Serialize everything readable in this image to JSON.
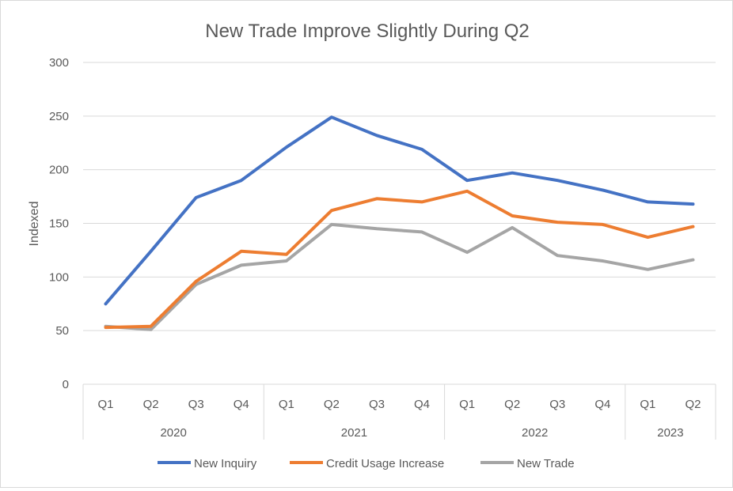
{
  "chart_data": {
    "type": "line",
    "title": "New Trade Improve Slightly During Q2",
    "xlabel": "",
    "ylabel": "Indexed",
    "ylim": [
      0,
      300
    ],
    "yticks": [
      0,
      50,
      100,
      150,
      200,
      250,
      300
    ],
    "grid": true,
    "legend_position": "bottom",
    "categories": [
      "Q1",
      "Q2",
      "Q3",
      "Q4",
      "Q1",
      "Q2",
      "Q3",
      "Q4",
      "Q1",
      "Q2",
      "Q3",
      "Q4",
      "Q1",
      "Q2"
    ],
    "groups": [
      {
        "label": "2020",
        "count": 4
      },
      {
        "label": "2021",
        "count": 4
      },
      {
        "label": "2022",
        "count": 4
      },
      {
        "label": "2023",
        "count": 2
      }
    ],
    "series": [
      {
        "name": "New Inquiry",
        "color": "#4472C4",
        "values": [
          75,
          124,
          174,
          190,
          221,
          249,
          232,
          219,
          190,
          197,
          190,
          181,
          170,
          168
        ]
      },
      {
        "name": "Credit Usage Increase",
        "color": "#ED7D31",
        "values": [
          53,
          54,
          96,
          124,
          121,
          162,
          173,
          170,
          180,
          157,
          151,
          149,
          137,
          147
        ]
      },
      {
        "name": "New Trade",
        "color": "#A5A5A5",
        "values": [
          54,
          51,
          93,
          111,
          115,
          149,
          145,
          142,
          123,
          146,
          120,
          115,
          107,
          116
        ]
      }
    ]
  }
}
